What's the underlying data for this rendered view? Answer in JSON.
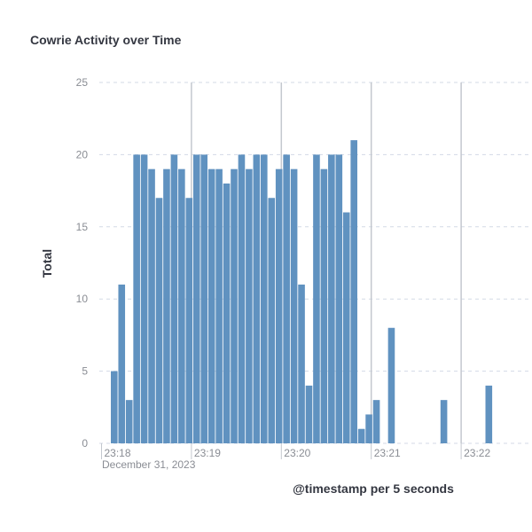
{
  "panel": {
    "title": "Cowrie Activity over Time"
  },
  "chart_data": {
    "type": "bar",
    "title": "Cowrie Activity over Time",
    "xlabel": "@timestamp per 5 seconds",
    "ylabel": "Total",
    "ylim": [
      0,
      25
    ],
    "y_ticks": [
      "0",
      "5",
      "10",
      "15",
      "20",
      "25"
    ],
    "x_ticks": [
      {
        "label": "23:18",
        "time": "2023-12-31T23:18:00"
      },
      {
        "label": "23:19",
        "time": "2023-12-31T23:19:00"
      },
      {
        "label": "23:20",
        "time": "2023-12-31T23:20:00"
      },
      {
        "label": "23:21",
        "time": "2023-12-31T23:21:00"
      },
      {
        "label": "23:22",
        "time": "2023-12-31T23:22:00"
      }
    ],
    "x_sub_label": "December 31, 2023",
    "interval": "5 seconds",
    "grid": true,
    "bar_color": "#6092c0",
    "gridline_color": "#d3dae6",
    "major_gridline_color": "#c4c8cf",
    "bars": [
      {
        "time": "2023-12-31T23:18:00",
        "value": 5
      },
      {
        "time": "2023-12-31T23:18:05",
        "value": 11
      },
      {
        "time": "2023-12-31T23:18:10",
        "value": 3
      },
      {
        "time": "2023-12-31T23:18:15",
        "value": 20
      },
      {
        "time": "2023-12-31T23:18:20",
        "value": 20
      },
      {
        "time": "2023-12-31T23:18:25",
        "value": 19
      },
      {
        "time": "2023-12-31T23:18:30",
        "value": 17
      },
      {
        "time": "2023-12-31T23:18:35",
        "value": 19
      },
      {
        "time": "2023-12-31T23:18:40",
        "value": 20
      },
      {
        "time": "2023-12-31T23:18:45",
        "value": 19
      },
      {
        "time": "2023-12-31T23:18:50",
        "value": 17
      },
      {
        "time": "2023-12-31T23:18:55",
        "value": 20
      },
      {
        "time": "2023-12-31T23:19:00",
        "value": 20
      },
      {
        "time": "2023-12-31T23:19:05",
        "value": 19
      },
      {
        "time": "2023-12-31T23:19:10",
        "value": 19
      },
      {
        "time": "2023-12-31T23:19:15",
        "value": 18
      },
      {
        "time": "2023-12-31T23:19:20",
        "value": 19
      },
      {
        "time": "2023-12-31T23:19:25",
        "value": 20
      },
      {
        "time": "2023-12-31T23:19:30",
        "value": 19
      },
      {
        "time": "2023-12-31T23:19:35",
        "value": 20
      },
      {
        "time": "2023-12-31T23:19:40",
        "value": 20
      },
      {
        "time": "2023-12-31T23:19:45",
        "value": 17
      },
      {
        "time": "2023-12-31T23:19:50",
        "value": 19
      },
      {
        "time": "2023-12-31T23:19:55",
        "value": 20
      },
      {
        "time": "2023-12-31T23:20:00",
        "value": 19
      },
      {
        "time": "2023-12-31T23:20:05",
        "value": 11
      },
      {
        "time": "2023-12-31T23:20:10",
        "value": 4
      },
      {
        "time": "2023-12-31T23:20:15",
        "value": 20
      },
      {
        "time": "2023-12-31T23:20:20",
        "value": 19
      },
      {
        "time": "2023-12-31T23:20:25",
        "value": 20
      },
      {
        "time": "2023-12-31T23:20:30",
        "value": 20
      },
      {
        "time": "2023-12-31T23:20:35",
        "value": 16
      },
      {
        "time": "2023-12-31T23:20:40",
        "value": 21
      },
      {
        "time": "2023-12-31T23:20:45",
        "value": 1
      },
      {
        "time": "2023-12-31T23:20:50",
        "value": 2
      },
      {
        "time": "2023-12-31T23:20:55",
        "value": 3
      },
      {
        "time": "2023-12-31T23:21:05",
        "value": 8
      },
      {
        "time": "2023-12-31T23:21:40",
        "value": 3
      },
      {
        "time": "2023-12-31T23:22:10",
        "value": 4
      }
    ]
  }
}
